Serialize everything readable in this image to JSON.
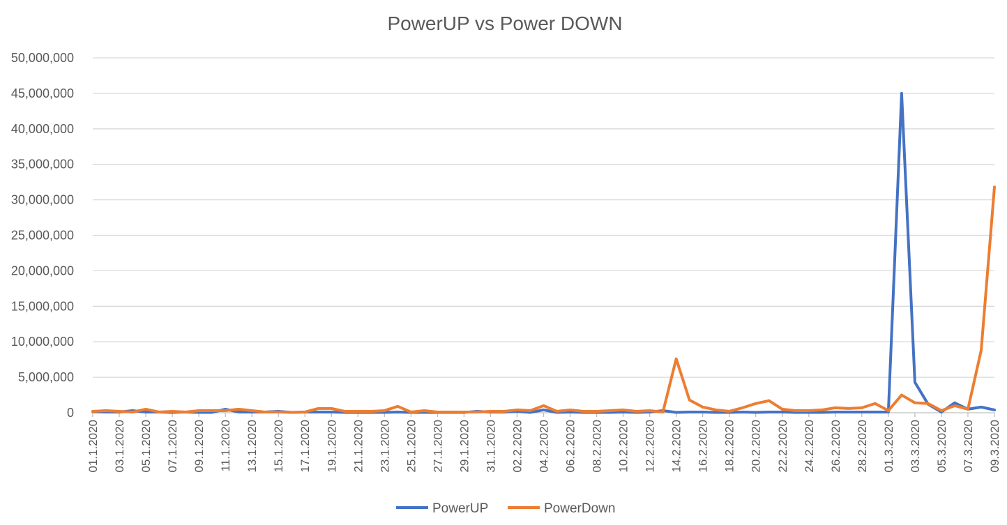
{
  "chart_data": {
    "type": "line",
    "title": "PowerUP vs Power DOWN",
    "xlabel": "",
    "ylabel": "",
    "ylim": [
      0,
      50000000
    ],
    "yticks": [
      "0",
      "5,000,000",
      "10,000,000",
      "15,000,000",
      "20,000,000",
      "25,000,000",
      "30,000,000",
      "35,000,000",
      "40,000,000",
      "45,000,000",
      "50,000,000"
    ],
    "grid": true,
    "legend_position": "bottom",
    "categories": [
      "01.1.2020",
      "02.1.2020",
      "03.1.2020",
      "04.1.2020",
      "05.1.2020",
      "06.1.2020",
      "07.1.2020",
      "08.1.2020",
      "09.1.2020",
      "10.1.2020",
      "11.1.2020",
      "12.1.2020",
      "13.1.2020",
      "14.1.2020",
      "15.1.2020",
      "16.1.2020",
      "17.1.2020",
      "18.1.2020",
      "19.1.2020",
      "20.1.2020",
      "21.1.2020",
      "22.1.2020",
      "23.1.2020",
      "24.1.2020",
      "25.1.2020",
      "26.1.2020",
      "27.1.2020",
      "28.1.2020",
      "29.1.2020",
      "30.1.2020",
      "31.1.2020",
      "01.2.2020",
      "02.2.2020",
      "03.2.2020",
      "04.2.2020",
      "05.2.2020",
      "06.2.2020",
      "07.2.2020",
      "08.2.2020",
      "09.2.2020",
      "10.2.2020",
      "11.2.2020",
      "12.2.2020",
      "13.2.2020",
      "14.2.2020",
      "15.2.2020",
      "16.2.2020",
      "17.2.2020",
      "18.2.2020",
      "19.2.2020",
      "20.2.2020",
      "21.2.2020",
      "22.2.2020",
      "23.2.2020",
      "24.2.2020",
      "25.2.2020",
      "26.2.2020",
      "27.2.2020",
      "28.2.2020",
      "29.2.2020",
      "01.3.2020",
      "02.3.2020",
      "03.3.2020",
      "04.3.2020",
      "05.3.2020",
      "06.3.2020",
      "07.3.2020",
      "08.3.2020",
      "09.3.2020"
    ],
    "xtick_labels": [
      "01.1.2020",
      "03.1.2020",
      "05.1.2020",
      "07.1.2020",
      "09.1.2020",
      "11.1.2020",
      "13.1.2020",
      "15.1.2020",
      "17.1.2020",
      "19.1.2020",
      "21.1.2020",
      "23.1.2020",
      "25.1.2020",
      "27.1.2020",
      "29.1.2020",
      "31.1.2020",
      "02.2.2020",
      "04.2.2020",
      "06.2.2020",
      "08.2.2020",
      "10.2.2020",
      "12.2.2020",
      "14.2.2020",
      "16.2.2020",
      "18.2.2020",
      "20.2.2020",
      "22.2.2020",
      "24.2.2020",
      "26.2.2020",
      "28.2.2020",
      "01.3.2020",
      "03.3.2020",
      "05.3.2020",
      "07.3.2020",
      "09.3.2020"
    ],
    "series": [
      {
        "name": "PowerUP",
        "color": "#4472c4",
        "values": [
          150000,
          100000,
          100000,
          300000,
          100000,
          100000,
          50000,
          100000,
          50000,
          50000,
          500000,
          100000,
          100000,
          100000,
          200000,
          50000,
          100000,
          100000,
          100000,
          50000,
          50000,
          50000,
          50000,
          100000,
          50000,
          50000,
          50000,
          50000,
          50000,
          200000,
          100000,
          100000,
          200000,
          50000,
          400000,
          50000,
          100000,
          50000,
          50000,
          50000,
          100000,
          50000,
          100000,
          300000,
          50000,
          100000,
          100000,
          50000,
          50000,
          100000,
          50000,
          100000,
          100000,
          50000,
          50000,
          50000,
          100000,
          100000,
          100000,
          100000,
          100000,
          45000000,
          4300000,
          1200000,
          100000,
          1400000,
          500000,
          800000,
          400000
        ]
      },
      {
        "name": "PowerDown",
        "color": "#ed7d31",
        "values": [
          200000,
          300000,
          200000,
          100000,
          500000,
          100000,
          200000,
          100000,
          300000,
          300000,
          300000,
          500000,
          300000,
          100000,
          100000,
          50000,
          100000,
          600000,
          600000,
          200000,
          200000,
          200000,
          300000,
          900000,
          100000,
          300000,
          100000,
          100000,
          100000,
          100000,
          200000,
          200000,
          400000,
          300000,
          1000000,
          200000,
          400000,
          200000,
          200000,
          300000,
          400000,
          200000,
          300000,
          100000,
          7600000,
          1800000,
          800000,
          400000,
          200000,
          700000,
          1300000,
          1700000,
          500000,
          300000,
          300000,
          400000,
          700000,
          600000,
          700000,
          1300000,
          300000,
          2500000,
          1400000,
          1300000,
          300000,
          1000000,
          500000,
          8800000,
          31800000
        ]
      }
    ]
  }
}
